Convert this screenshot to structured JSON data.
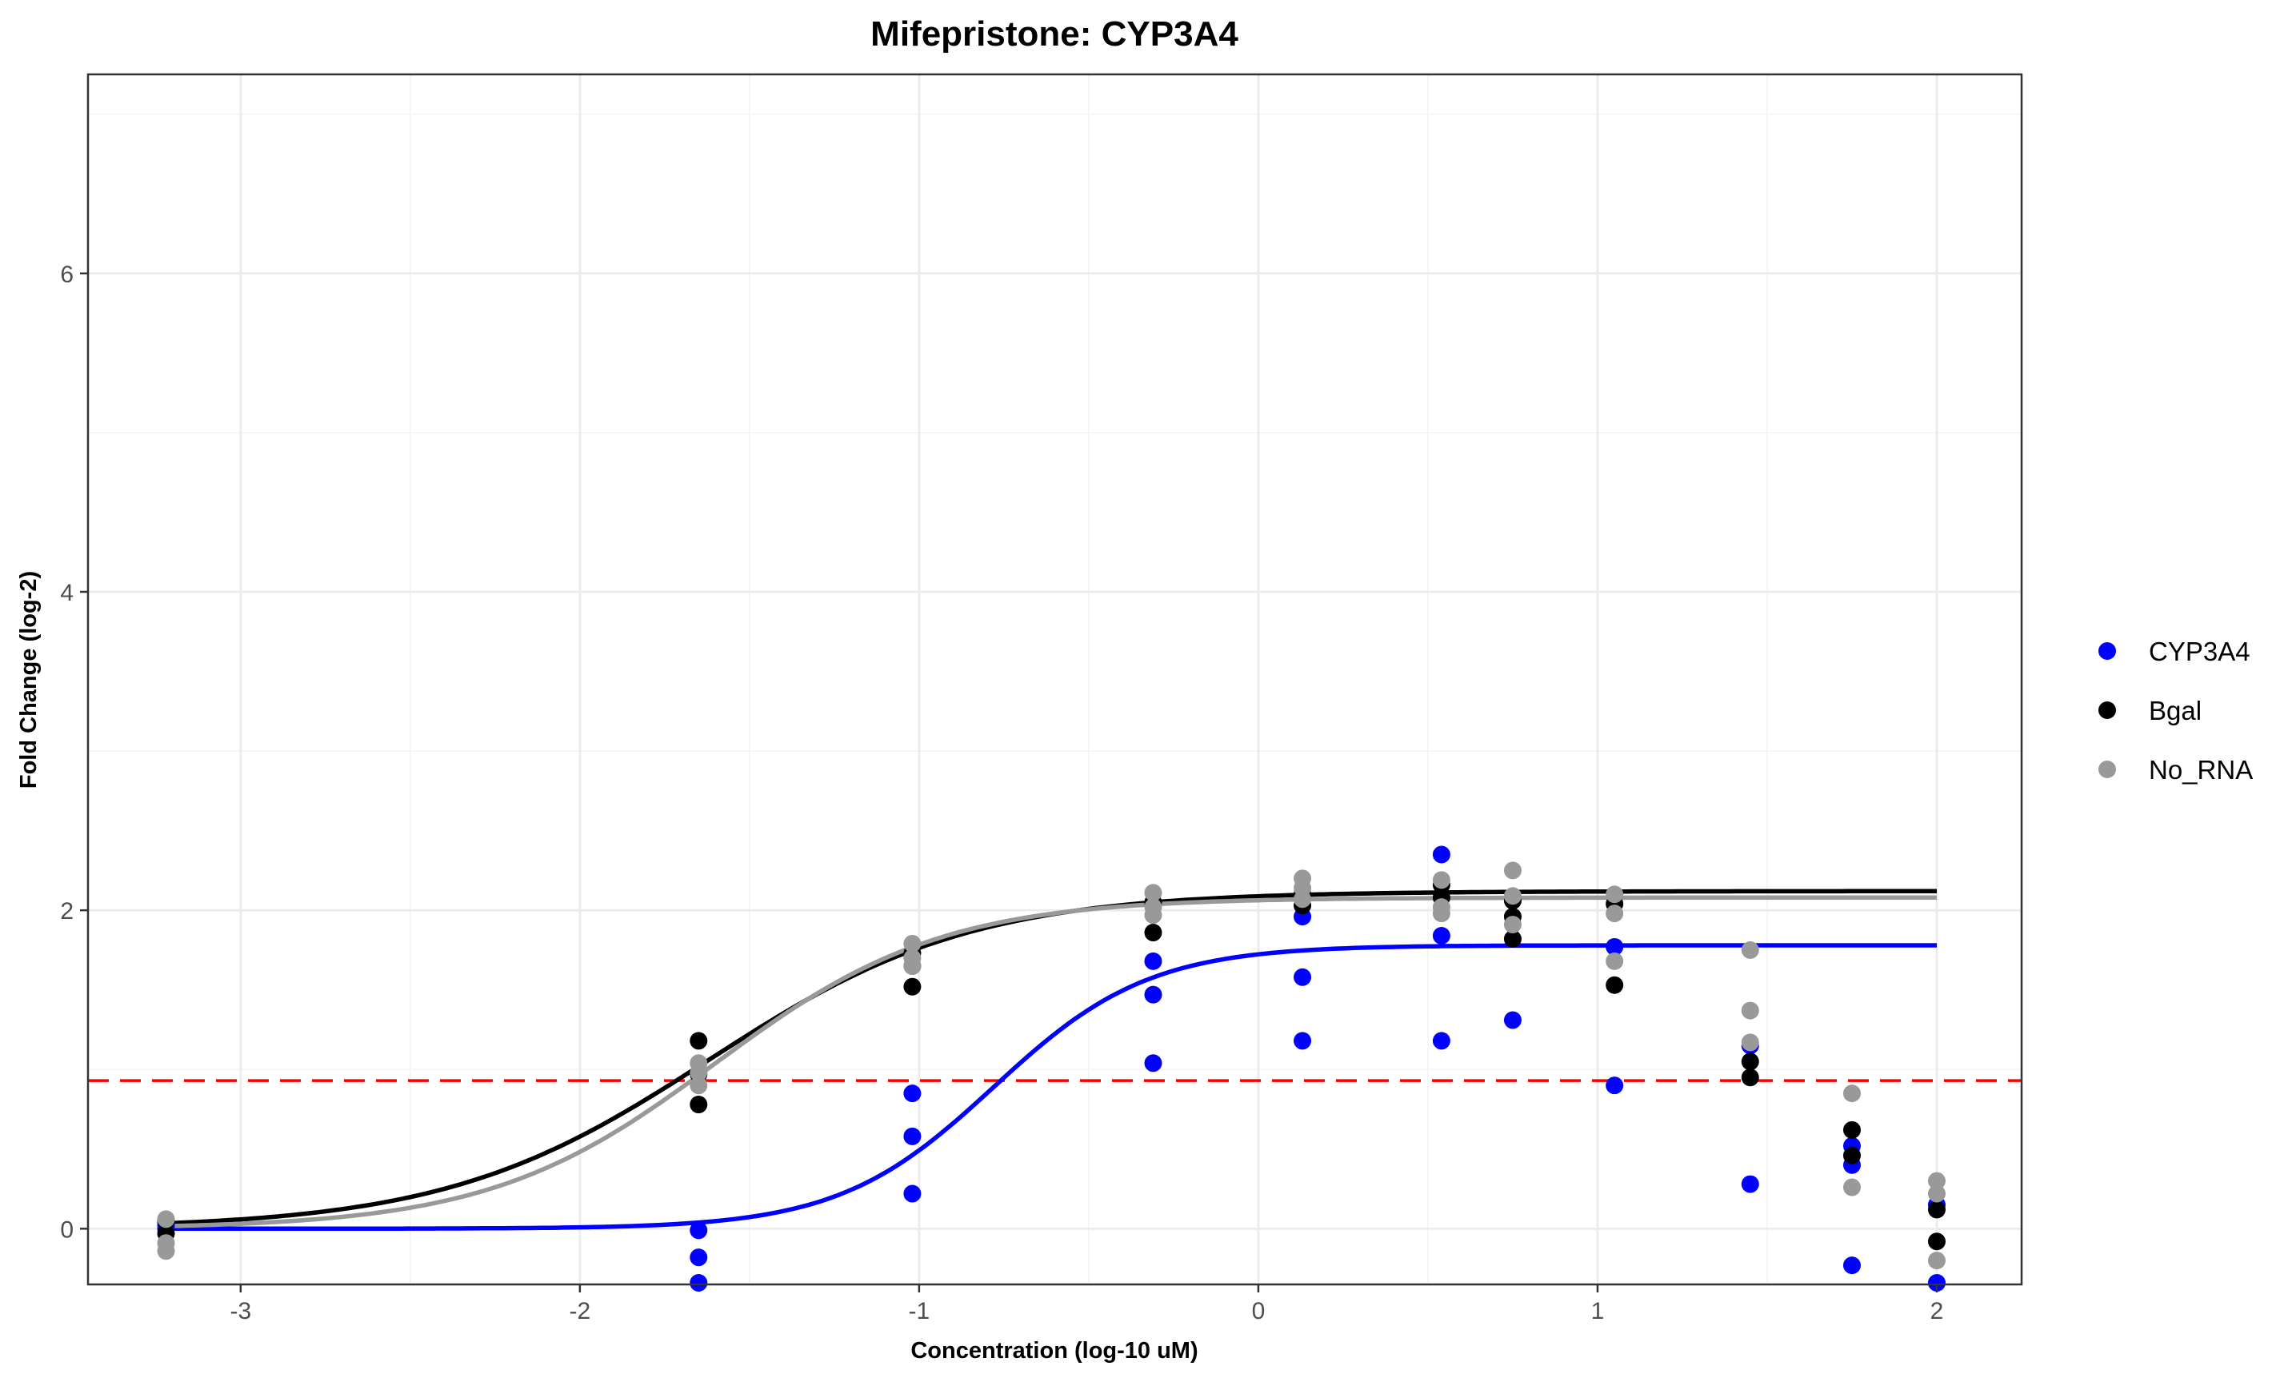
{
  "chart_data": {
    "type": "scatter",
    "title": "Mifepristone: CYP3A4",
    "xlabel": "Concentration (log-10 uM)",
    "ylabel": "Fold Change (log-2)",
    "xlim": [
      -3.45,
      2.25
    ],
    "ylim": [
      -0.35,
      7.25
    ],
    "x_ticks": [
      -3,
      -2,
      -1,
      0,
      1,
      2
    ],
    "y_ticks": [
      0,
      2,
      4,
      6
    ],
    "x_tick_labels": [
      "-3",
      "-2",
      "-1",
      "0",
      "1",
      "2"
    ],
    "y_tick_labels": [
      "0",
      "2",
      "4",
      "6"
    ],
    "grid": true,
    "legend_position": "right",
    "threshold_line": {
      "y": 0.93,
      "color": "#ff0000",
      "style": "dashed"
    },
    "series": [
      {
        "name": "CYP3A4",
        "color": "#0000ff",
        "points": [
          [
            -3.22,
            0.0
          ],
          [
            -3.22,
            0.02
          ],
          [
            -3.22,
            0.04
          ],
          [
            -1.65,
            -0.01
          ],
          [
            -1.65,
            -0.18
          ],
          [
            -1.65,
            -0.34
          ],
          [
            -1.02,
            0.85
          ],
          [
            -1.02,
            0.58
          ],
          [
            -1.02,
            0.22
          ],
          [
            -0.31,
            1.68
          ],
          [
            -0.31,
            1.47
          ],
          [
            -0.31,
            1.04
          ],
          [
            0.13,
            1.96
          ],
          [
            0.13,
            1.58
          ],
          [
            0.13,
            1.18
          ],
          [
            0.54,
            2.35
          ],
          [
            0.54,
            1.84
          ],
          [
            0.54,
            1.18
          ],
          [
            0.75,
            1.31
          ],
          [
            1.05,
            1.77
          ],
          [
            1.05,
            0.9
          ],
          [
            1.45,
            1.15
          ],
          [
            1.45,
            0.28
          ],
          [
            1.75,
            0.52
          ],
          [
            1.75,
            0.4
          ],
          [
            1.75,
            -0.23
          ],
          [
            2.0,
            0.15
          ],
          [
            2.0,
            -0.34
          ]
        ],
        "curve": {
          "bottom": 0.0,
          "top": 1.78,
          "log_ec50": -0.78,
          "hill": 1.9
        }
      },
      {
        "name": "Bgal",
        "color": "#000000",
        "points": [
          [
            -3.22,
            -0.03
          ],
          [
            -3.22,
            0.05
          ],
          [
            -1.65,
            1.18
          ],
          [
            -1.65,
            0.97
          ],
          [
            -1.65,
            0.78
          ],
          [
            -1.02,
            1.73
          ],
          [
            -1.02,
            1.65
          ],
          [
            -1.02,
            1.52
          ],
          [
            -0.31,
            2.05
          ],
          [
            -0.31,
            1.86
          ],
          [
            0.13,
            2.1
          ],
          [
            0.13,
            2.03
          ],
          [
            0.54,
            2.16
          ],
          [
            0.54,
            2.08
          ],
          [
            0.75,
            2.06
          ],
          [
            0.75,
            1.96
          ],
          [
            0.75,
            1.82
          ],
          [
            1.05,
            2.04
          ],
          [
            1.05,
            1.53
          ],
          [
            1.45,
            1.05
          ],
          [
            1.45,
            0.95
          ],
          [
            1.75,
            0.62
          ],
          [
            1.75,
            0.46
          ],
          [
            2.0,
            0.12
          ],
          [
            2.0,
            -0.08
          ]
        ],
        "curve": {
          "bottom": 0.0,
          "top": 2.12,
          "log_ec50": -1.62,
          "hill": 1.12
        }
      },
      {
        "name": "No_RNA",
        "color": "#999999",
        "points": [
          [
            -3.22,
            0.06
          ],
          [
            -3.22,
            -0.09
          ],
          [
            -3.22,
            -0.14
          ],
          [
            -1.65,
            1.04
          ],
          [
            -1.65,
            0.98
          ],
          [
            -1.65,
            0.9
          ],
          [
            -1.02,
            1.79
          ],
          [
            -1.02,
            1.7
          ],
          [
            -1.02,
            1.65
          ],
          [
            -0.31,
            2.11
          ],
          [
            -0.31,
            2.02
          ],
          [
            -0.31,
            1.97
          ],
          [
            0.13,
            2.2
          ],
          [
            0.13,
            2.14
          ],
          [
            0.13,
            2.07
          ],
          [
            0.54,
            2.19
          ],
          [
            0.54,
            2.02
          ],
          [
            0.54,
            1.98
          ],
          [
            0.75,
            2.25
          ],
          [
            0.75,
            2.09
          ],
          [
            0.75,
            1.91
          ],
          [
            1.05,
            2.1
          ],
          [
            1.05,
            1.98
          ],
          [
            1.05,
            1.68
          ],
          [
            1.45,
            1.75
          ],
          [
            1.45,
            1.37
          ],
          [
            1.45,
            1.17
          ],
          [
            1.75,
            0.85
          ],
          [
            1.75,
            0.26
          ],
          [
            2.0,
            0.3
          ],
          [
            2.0,
            0.22
          ],
          [
            2.0,
            -0.2
          ]
        ],
        "curve": {
          "bottom": 0.0,
          "top": 2.08,
          "log_ec50": -1.6,
          "hill": 1.3
        }
      }
    ]
  }
}
